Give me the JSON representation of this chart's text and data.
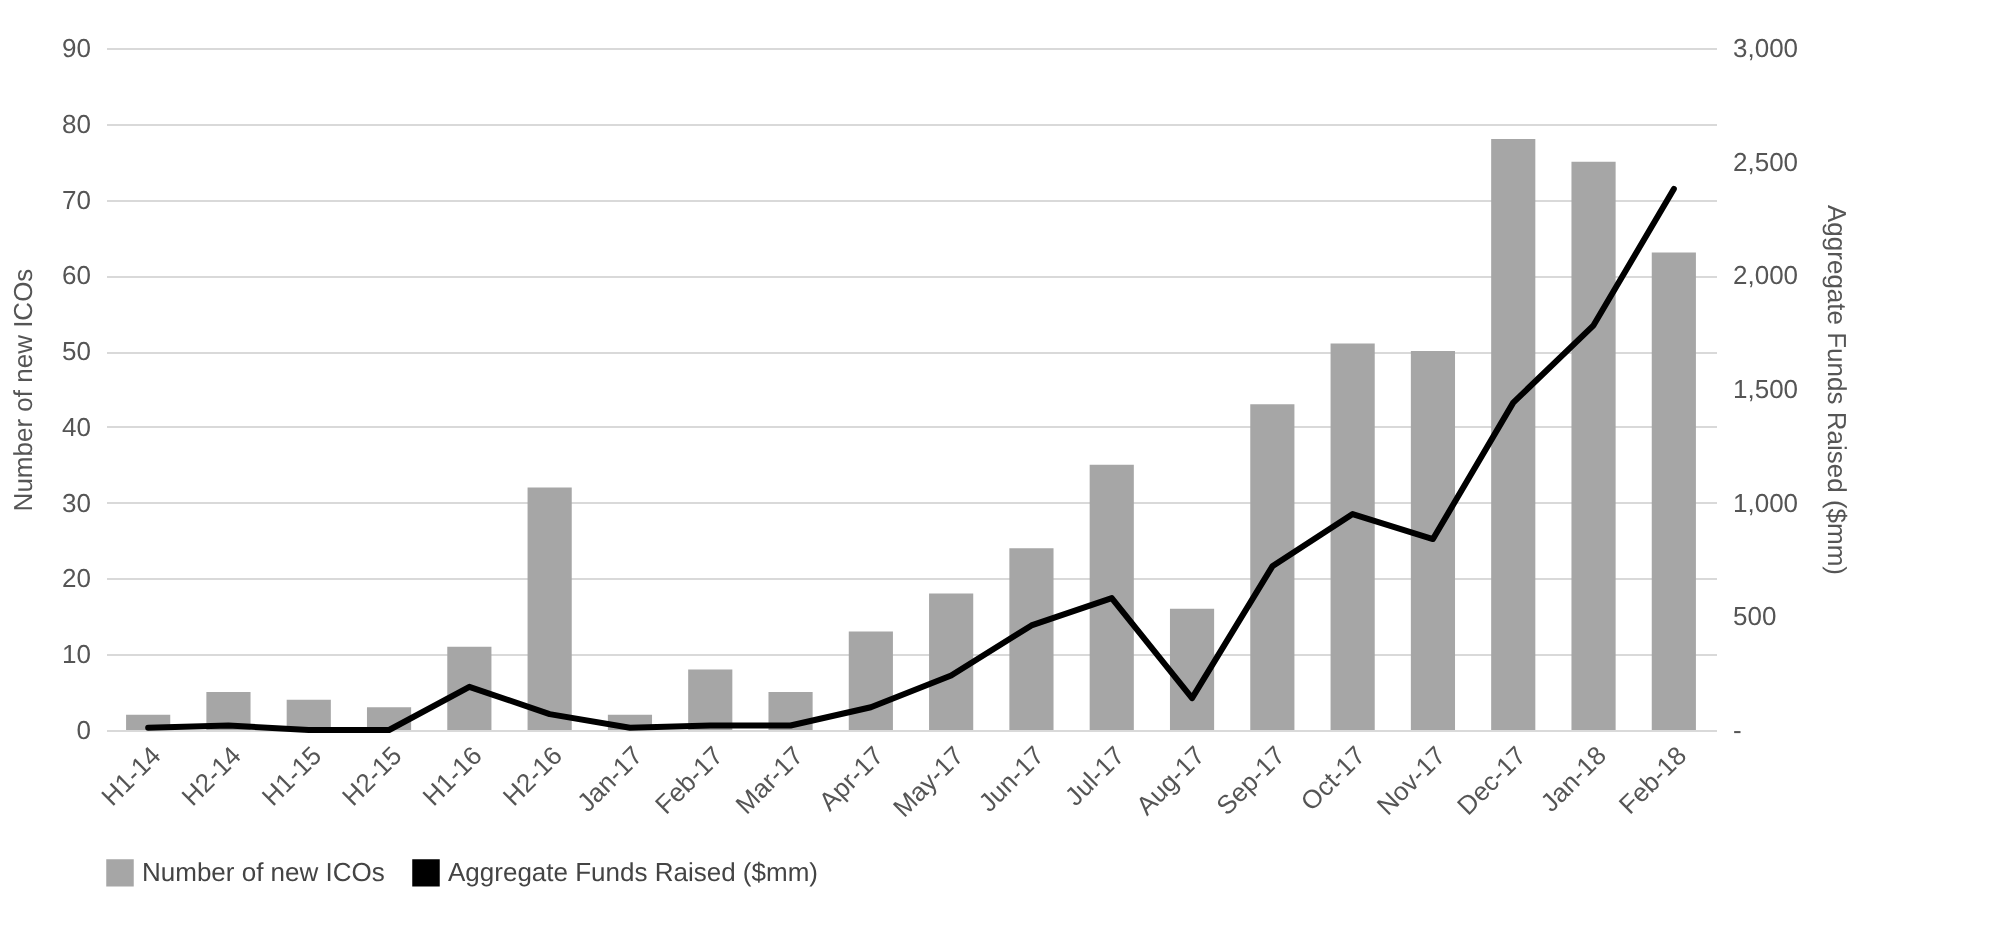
{
  "chart_data": {
    "type": "bar",
    "ylabel": "Number of new ICOs",
    "y2label": "Aggregate Funds Raised ($mm)",
    "categories": [
      "H1-14",
      "H2-14",
      "H1-15",
      "H2-15",
      "H1-16",
      "H2-16",
      "Jan-17",
      "Feb-17",
      "Mar-17",
      "Apr-17",
      "May-17",
      "Jun-17",
      "Jul-17",
      "Aug-17",
      "Sep-17",
      "Oct-17",
      "Nov-17",
      "Dec-17",
      "Jan-18",
      "Feb-18"
    ],
    "series": [
      {
        "name": "Number of new ICOs",
        "color": "#a6a6a6",
        "values": [
          2,
          5,
          4,
          3,
          11,
          32,
          2,
          8,
          5,
          13,
          18,
          24,
          35,
          16,
          43,
          51,
          50,
          78,
          75,
          63
        ]
      },
      {
        "name": "Aggregate Funds Raised ($mm)",
        "type": "line",
        "axis": "y2",
        "color": "#000000",
        "values": [
          10,
          20,
          0,
          0,
          190,
          70,
          10,
          20,
          20,
          100,
          240,
          460,
          580,
          140,
          720,
          950,
          840,
          1440,
          1780,
          2380
        ]
      }
    ],
    "ylim": [
      0,
      90
    ],
    "yticks": [
      0,
      10,
      20,
      30,
      40,
      50,
      60,
      70,
      80,
      90
    ],
    "y2lim": [
      0,
      3000
    ],
    "y2ticks": [
      {
        "value": 0,
        "label": "-"
      },
      {
        "value": 500,
        "label": "500"
      },
      {
        "value": 1000,
        "label": "1,000"
      },
      {
        "value": 1500,
        "label": "1,500"
      },
      {
        "value": 2000,
        "label": "2,000"
      },
      {
        "value": 2500,
        "label": "2,500"
      },
      {
        "value": 3000,
        "label": "3,000"
      }
    ],
    "grid": "y",
    "legend": "bottom"
  }
}
